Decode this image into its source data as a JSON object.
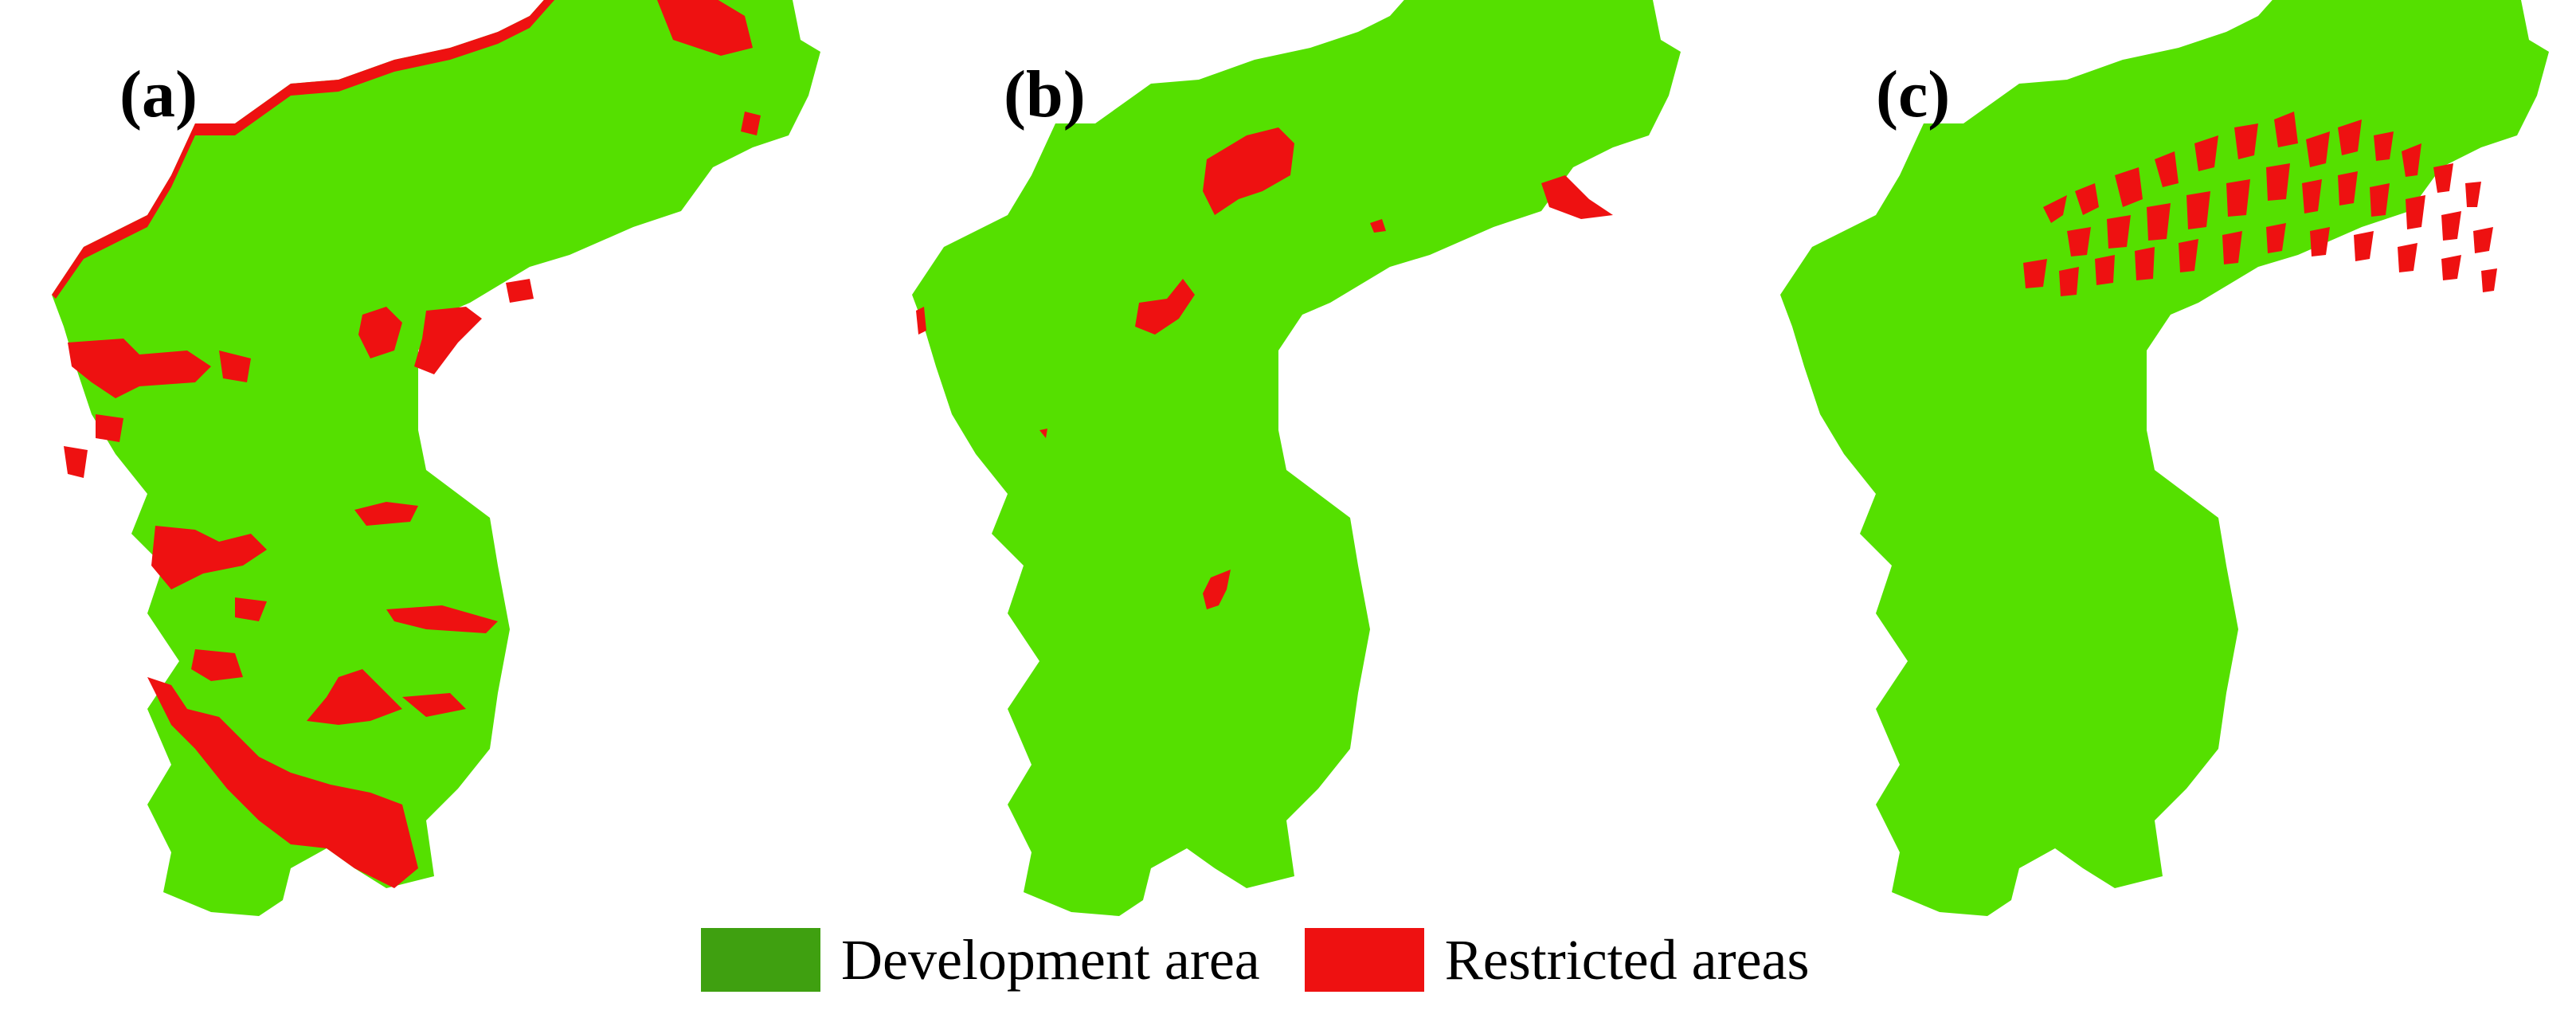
{
  "figure": {
    "panels": [
      {
        "label": "(a)"
      },
      {
        "label": "(b)"
      },
      {
        "label": "(c)"
      }
    ],
    "legend": [
      {
        "label": "Development area",
        "color": "#3fa010"
      },
      {
        "label": "Restricted areas",
        "color": "#ee1111"
      }
    ],
    "map_colors": {
      "development": "#55e000",
      "restricted": "#ee1111"
    }
  }
}
